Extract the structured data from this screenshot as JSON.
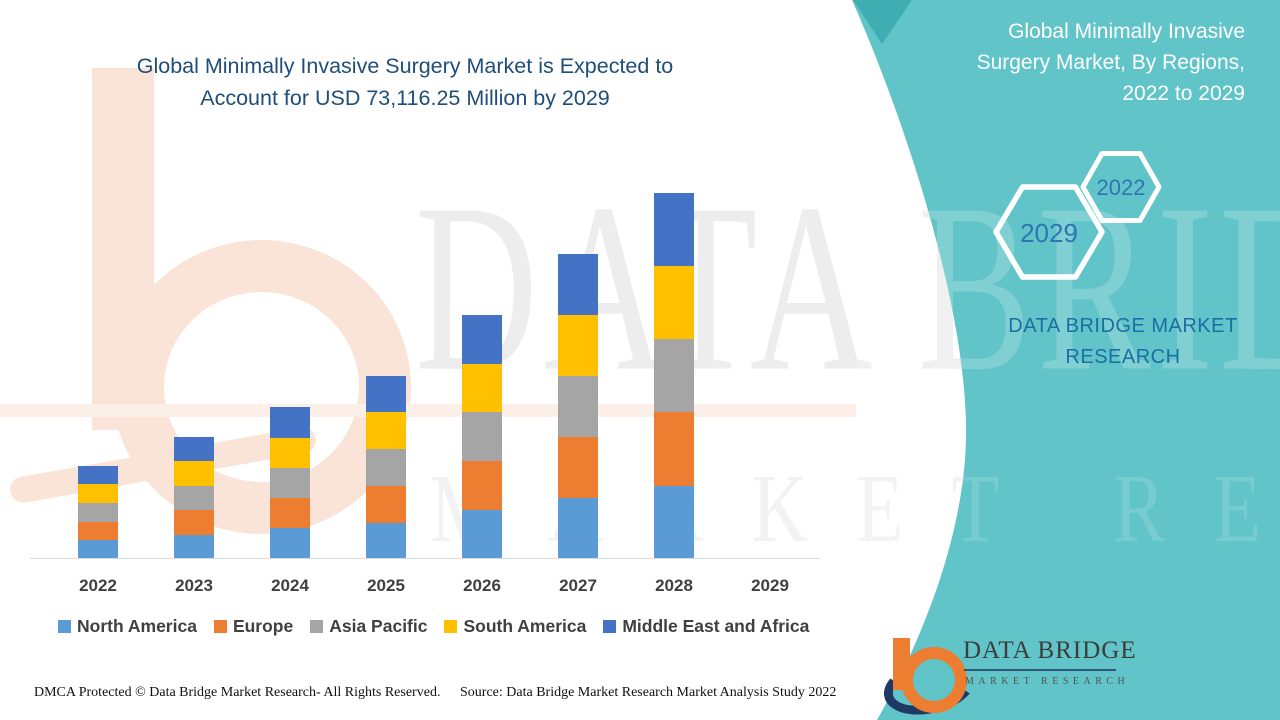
{
  "chart_header": {
    "lines": [
      "Global Minimally Invasive Surgery Market is Expected to",
      "Account for USD 73,116.25 Million by 2029"
    ]
  },
  "side_panel": {
    "title_lines": [
      "Global Minimally Invasive",
      "Surgery Market, By Regions,",
      "2022 to 2029"
    ],
    "hexagon_large_year": "2029",
    "hexagon_small_year": "2022",
    "brand_text": "DATA BRIDGE MARKET RESEARCH",
    "colors": {
      "panel": "#60C4C8",
      "panel_dark_corner": "#3FAEB3",
      "year_text": "#2E75B6",
      "brand_text": "#1C6EA4"
    }
  },
  "logo": {
    "name_text": "DATA BRIDGE",
    "sub_text": "MARKET RESEARCH"
  },
  "footer": {
    "left": "DMCA Protected © Data Bridge Market Research- All Rights Reserved.",
    "source": "Source: Data Bridge Market Research Market Analysis Study 2022"
  },
  "watermark": {
    "line1": "DATA BRIDGE",
    "line2": "MARKET RESEARCH"
  },
  "chart_data": {
    "type": "bar",
    "stacked": true,
    "title": "Global Minimally Invasive Surgery Market is Expected to Account for USD 73,116.25 Million by 2029",
    "xlabel": "",
    "ylabel": "",
    "value_axis_shown": false,
    "legend_position": "bottom",
    "categories": [
      "2022",
      "2023",
      "2024",
      "2025",
      "2026",
      "2027",
      "2028",
      "2029"
    ],
    "series": [
      {
        "name": "North America",
        "color": "#5B9BD5",
        "values": [
          19,
          24,
          31,
          36,
          49,
          61,
          73,
          0
        ]
      },
      {
        "name": "Europe",
        "color": "#ED7D31",
        "values": [
          18,
          25,
          30,
          37,
          49,
          61,
          74,
          0
        ]
      },
      {
        "name": "Asia Pacific",
        "color": "#A5A5A5",
        "values": [
          19,
          24,
          30,
          37,
          49,
          61,
          73,
          0
        ]
      },
      {
        "name": "South America",
        "color": "#FFC000",
        "values": [
          19,
          25,
          30,
          37,
          48,
          61,
          73,
          0
        ]
      },
      {
        "name": "Middle East and Africa",
        "color": "#4472C4",
        "values": [
          18,
          24,
          31,
          36,
          49,
          61,
          73,
          0
        ]
      }
    ],
    "units_note": "No value axis shown in source image; series values are estimated relative heights (px). Title states 2029 total = USD 73,116.25 million; no bar is drawn for 2029."
  }
}
